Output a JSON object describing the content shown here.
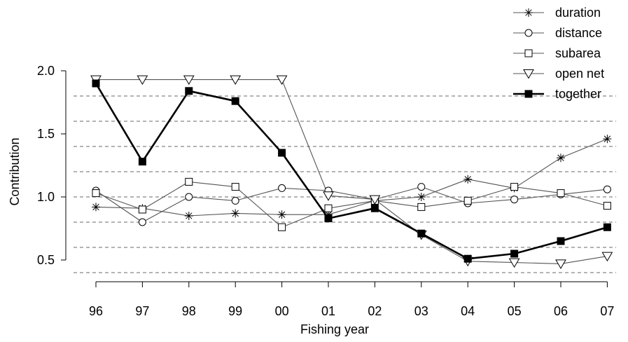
{
  "chart_data": {
    "type": "line",
    "xlabel": "Fishing year",
    "ylabel": "Contribution",
    "categories": [
      "96",
      "97",
      "98",
      "99",
      "00",
      "01",
      "02",
      "03",
      "04",
      "05",
      "06",
      "07"
    ],
    "ylim": [
      0.4,
      2.0
    ],
    "yticks": [
      "0.5",
      "1.0",
      "1.5",
      "2.0"
    ],
    "reference_lines": [
      0.4,
      0.6,
      0.8,
      1.0,
      1.2,
      1.4,
      1.6,
      1.8
    ],
    "legend_position": "top-right",
    "series": [
      {
        "name": "duration",
        "marker": "asterisk",
        "line_weight": "thin",
        "color": "#000000",
        "values": [
          0.92,
          0.91,
          0.85,
          0.87,
          0.86,
          0.86,
          0.97,
          1.0,
          1.14,
          1.07,
          1.31,
          1.46
        ]
      },
      {
        "name": "distance",
        "marker": "circle",
        "line_weight": "thin",
        "color": "#000000",
        "values": [
          1.05,
          0.8,
          1.0,
          0.97,
          1.07,
          1.05,
          0.98,
          1.08,
          0.95,
          0.98,
          1.02,
          1.06
        ]
      },
      {
        "name": "subarea",
        "marker": "square",
        "line_weight": "thin",
        "color": "#000000",
        "values": [
          1.03,
          0.9,
          1.12,
          1.08,
          0.76,
          0.91,
          0.97,
          0.92,
          0.97,
          1.08,
          1.03,
          0.93
        ]
      },
      {
        "name": "open net",
        "marker": "triangle-down",
        "line_weight": "thin",
        "color": "#000000",
        "values": [
          1.93,
          1.93,
          1.93,
          1.93,
          1.93,
          1.01,
          0.98,
          0.7,
          0.49,
          0.48,
          0.47,
          0.53
        ]
      },
      {
        "name": "together",
        "marker": "filled-square",
        "line_weight": "thick",
        "color": "#000000",
        "values": [
          1.9,
          1.28,
          1.84,
          1.76,
          1.35,
          0.83,
          0.91,
          0.71,
          0.51,
          0.55,
          0.65,
          0.76
        ]
      }
    ]
  }
}
